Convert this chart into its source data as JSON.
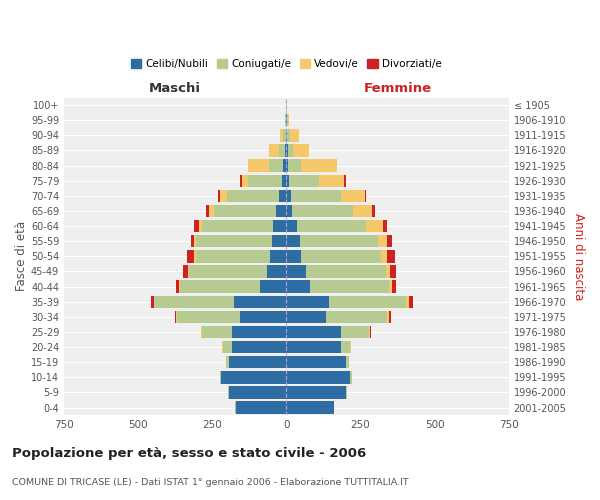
{
  "age_groups": [
    "0-4",
    "5-9",
    "10-14",
    "15-19",
    "20-24",
    "25-29",
    "30-34",
    "35-39",
    "40-44",
    "45-49",
    "50-54",
    "55-59",
    "60-64",
    "65-69",
    "70-74",
    "75-79",
    "80-84",
    "85-89",
    "90-94",
    "95-99",
    "100+"
  ],
  "birth_years": [
    "2001-2005",
    "1996-2000",
    "1991-1995",
    "1986-1990",
    "1981-1985",
    "1976-1980",
    "1971-1975",
    "1966-1970",
    "1961-1965",
    "1956-1960",
    "1951-1955",
    "1946-1950",
    "1941-1945",
    "1936-1940",
    "1931-1935",
    "1926-1930",
    "1921-1925",
    "1916-1920",
    "1911-1915",
    "1906-1910",
    "≤ 1905"
  ],
  "male": {
    "celibi": [
      170,
      195,
      220,
      195,
      185,
      185,
      155,
      175,
      90,
      65,
      55,
      50,
      45,
      35,
      25,
      15,
      10,
      5,
      2,
      1,
      0
    ],
    "coniugati": [
      2,
      3,
      5,
      10,
      30,
      100,
      215,
      270,
      270,
      265,
      250,
      255,
      240,
      210,
      175,
      115,
      50,
      20,
      8,
      2,
      0
    ],
    "vedovi": [
      0,
      0,
      0,
      0,
      2,
      2,
      1,
      2,
      2,
      3,
      5,
      5,
      10,
      15,
      25,
      20,
      70,
      35,
      12,
      2,
      0
    ],
    "divorziati": [
      0,
      0,
      0,
      0,
      1,
      2,
      5,
      10,
      10,
      15,
      25,
      10,
      15,
      10,
      5,
      5,
      0,
      0,
      0,
      0,
      0
    ]
  },
  "female": {
    "nubili": [
      160,
      200,
      215,
      200,
      185,
      185,
      135,
      145,
      80,
      65,
      50,
      45,
      35,
      20,
      15,
      10,
      6,
      4,
      2,
      1,
      0
    ],
    "coniugate": [
      2,
      3,
      5,
      10,
      30,
      95,
      205,
      260,
      265,
      270,
      270,
      265,
      235,
      205,
      170,
      100,
      45,
      18,
      10,
      3,
      0
    ],
    "vedove": [
      0,
      0,
      0,
      1,
      2,
      3,
      5,
      8,
      10,
      15,
      20,
      30,
      55,
      65,
      80,
      85,
      120,
      55,
      30,
      5,
      1
    ],
    "divorziate": [
      0,
      0,
      0,
      0,
      1,
      3,
      8,
      15,
      15,
      20,
      25,
      15,
      15,
      10,
      5,
      5,
      0,
      0,
      0,
      0,
      0
    ]
  },
  "colors": {
    "celibi": "#2e6da4",
    "coniugati": "#b5cb91",
    "vedovi": "#f5c869",
    "divorziati": "#cc2222"
  },
  "title": "Popolazione per età, sesso e stato civile - 2006",
  "subtitle": "COMUNE DI TRICASE (LE) - Dati ISTAT 1° gennaio 2006 - Elaborazione TUTTITALIA.IT",
  "xlabel_left": "Maschi",
  "xlabel_right": "Femmine",
  "ylabel_left": "Fasce di età",
  "ylabel_right": "Anni di nascita",
  "xlim": 750,
  "legend_labels": [
    "Celibi/Nubili",
    "Coniugati/e",
    "Vedovi/e",
    "Divorziati/e"
  ],
  "background_color": "#ffffff",
  "plot_background": "#efefef"
}
